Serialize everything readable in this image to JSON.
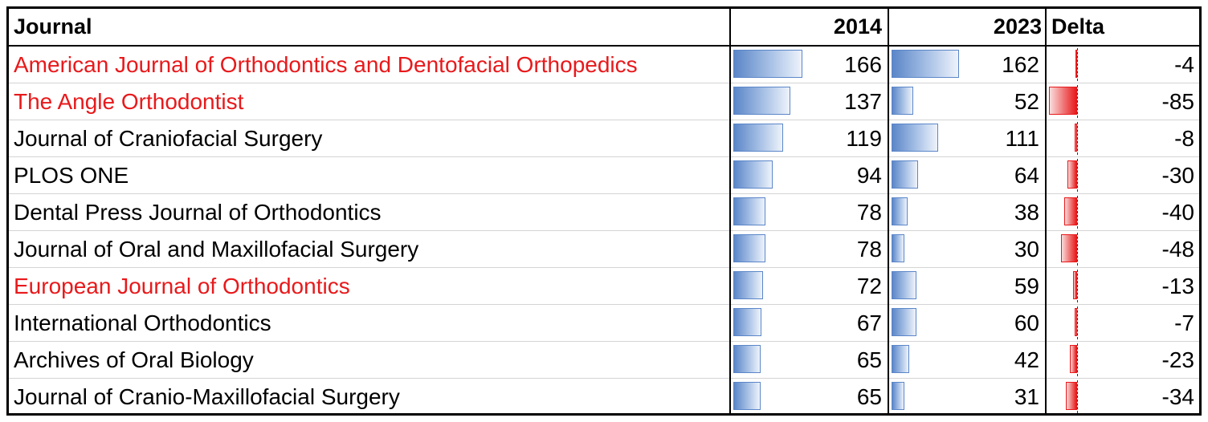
{
  "header": {
    "journal": "Journal",
    "y2014": "2014",
    "y2023": "2023",
    "delta": "Delta"
  },
  "scale": {
    "max_count": 166,
    "max_abs_delta": 85
  },
  "rows": [
    {
      "journal": "American Journal of Orthodontics and Dentofacial Orthopedics",
      "highlight": true,
      "v2014": 166,
      "v2023": 162,
      "delta": -4
    },
    {
      "journal": "The Angle Orthodontist",
      "highlight": true,
      "v2014": 137,
      "v2023": 52,
      "delta": -85
    },
    {
      "journal": "Journal of Craniofacial Surgery",
      "highlight": false,
      "v2014": 119,
      "v2023": 111,
      "delta": -8
    },
    {
      "journal": "PLOS ONE",
      "highlight": false,
      "v2014": 94,
      "v2023": 64,
      "delta": -30
    },
    {
      "journal": "Dental Press Journal of Orthodontics",
      "highlight": false,
      "v2014": 78,
      "v2023": 38,
      "delta": -40
    },
    {
      "journal": "Journal of Oral and Maxillofacial Surgery",
      "highlight": false,
      "v2014": 78,
      "v2023": 30,
      "delta": -48
    },
    {
      "journal": "European Journal of Orthodontics",
      "highlight": true,
      "v2014": 72,
      "v2023": 59,
      "delta": -13
    },
    {
      "journal": "International Orthodontics",
      "highlight": false,
      "v2014": 67,
      "v2023": 60,
      "delta": -7
    },
    {
      "journal": "Archives of Oral Biology",
      "highlight": false,
      "v2014": 65,
      "v2023": 42,
      "delta": -23
    },
    {
      "journal": "Journal of Cranio-Maxillofacial Surgery",
      "highlight": false,
      "v2014": 65,
      "v2023": 31,
      "delta": -34
    }
  ],
  "colors": {
    "highlight_text": "#e8191b",
    "bar_blue": "#5b86c8",
    "bar_red": "#e8191b"
  }
}
